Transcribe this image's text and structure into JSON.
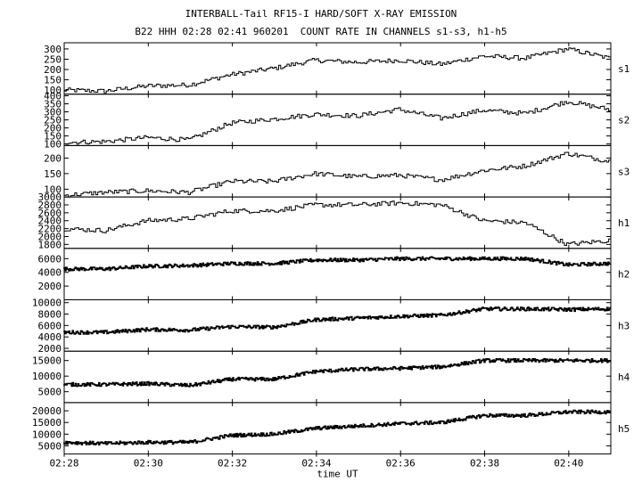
{
  "figure": {
    "title": "INTERBALL-Tail RF15-I HARD/SOFT X-RAY EMISSION",
    "subtitle": "B22 HHH 02:28 02:41 960201  COUNT RATE IN CHANNELS s1-s3, h1-h5",
    "xlabel": "time UT"
  },
  "chart_data": {
    "type": "line",
    "x_range": [
      "02:28",
      "02:41"
    ],
    "x_ticks": [
      "02:28",
      "02:30",
      "02:32",
      "02:34",
      "02:36",
      "02:38",
      "02:40"
    ],
    "grid": false,
    "panels": [
      {
        "name": "s1",
        "ylim": [
          80,
          330
        ],
        "y_ticks": [
          100,
          150,
          200,
          250,
          300
        ],
        "x": [
          "02:28",
          "02:29",
          "02:30",
          "02:31",
          "02:32",
          "02:33",
          "02:34",
          "02:35",
          "02:36",
          "02:37",
          "02:38",
          "02:39",
          "02:40",
          "02:41"
        ],
        "values": [
          100,
          95,
          120,
          125,
          175,
          205,
          245,
          235,
          245,
          225,
          265,
          255,
          300,
          255
        ]
      },
      {
        "name": "s2",
        "ylim": [
          90,
          410
        ],
        "y_ticks": [
          100,
          150,
          200,
          250,
          300,
          350,
          400
        ],
        "x": [
          "02:28",
          "02:29",
          "02:30",
          "02:31",
          "02:32",
          "02:33",
          "02:34",
          "02:35",
          "02:36",
          "02:37",
          "02:38",
          "02:39",
          "02:40",
          "02:41"
        ],
        "values": [
          110,
          115,
          140,
          125,
          230,
          255,
          285,
          275,
          315,
          260,
          310,
          290,
          365,
          315
        ]
      },
      {
        "name": "s3",
        "ylim": [
          75,
          240
        ],
        "y_ticks": [
          100,
          150,
          200
        ],
        "x": [
          "02:28",
          "02:29",
          "02:30",
          "02:31",
          "02:32",
          "02:33",
          "02:34",
          "02:35",
          "02:36",
          "02:37",
          "02:38",
          "02:39",
          "02:40",
          "02:41"
        ],
        "values": [
          80,
          90,
          95,
          90,
          125,
          125,
          150,
          140,
          145,
          130,
          160,
          175,
          215,
          190
        ]
      },
      {
        "name": "h1",
        "ylim": [
          1700,
          3000
        ],
        "y_ticks": [
          1800,
          2000,
          2200,
          2400,
          2600,
          2800,
          3000
        ],
        "x": [
          "02:28",
          "02:29",
          "02:30",
          "02:31",
          "02:32",
          "02:33",
          "02:34",
          "02:35",
          "02:36",
          "02:37",
          "02:38",
          "02:39",
          "02:40",
          "02:41"
        ],
        "values": [
          2200,
          2150,
          2400,
          2450,
          2650,
          2650,
          2800,
          2800,
          2850,
          2800,
          2400,
          2350,
          1800,
          1900
        ]
      },
      {
        "name": "h2",
        "ylim": [
          0,
          7500
        ],
        "y_ticks": [
          2000,
          4000,
          6000
        ],
        "x": [
          "02:28",
          "02:29",
          "02:30",
          "02:31",
          "02:32",
          "02:33",
          "02:34",
          "02:35",
          "02:36",
          "02:37",
          "02:38",
          "02:39",
          "02:40",
          "02:41"
        ],
        "values": [
          4500,
          4500,
          4900,
          5000,
          5300,
          5300,
          5800,
          5800,
          6000,
          6000,
          6000,
          6000,
          5100,
          5300
        ]
      },
      {
        "name": "h3",
        "ylim": [
          1500,
          10500
        ],
        "y_ticks": [
          2000,
          4000,
          6000,
          8000,
          10000
        ],
        "x": [
          "02:28",
          "02:29",
          "02:30",
          "02:31",
          "02:32",
          "02:33",
          "02:34",
          "02:35",
          "02:36",
          "02:37",
          "02:38",
          "02:39",
          "02:40",
          "02:41"
        ],
        "values": [
          4800,
          4800,
          5300,
          5200,
          5800,
          5700,
          7000,
          7300,
          7600,
          7800,
          8900,
          8900,
          8800,
          8900
        ]
      },
      {
        "name": "h4",
        "ylim": [
          1500,
          18000
        ],
        "y_ticks": [
          5000,
          10000,
          15000
        ],
        "x": [
          "02:28",
          "02:29",
          "02:30",
          "02:31",
          "02:32",
          "02:33",
          "02:34",
          "02:35",
          "02:36",
          "02:37",
          "02:38",
          "02:39",
          "02:40",
          "02:41"
        ],
        "values": [
          7300,
          7300,
          7600,
          7000,
          9000,
          9000,
          11500,
          12200,
          12500,
          13000,
          15000,
          15000,
          15000,
          15000
        ]
      },
      {
        "name": "h5",
        "ylim": [
          1500,
          23500
        ],
        "y_ticks": [
          5000,
          10000,
          15000,
          20000
        ],
        "x": [
          "02:28",
          "02:29",
          "02:30",
          "02:31",
          "02:32",
          "02:33",
          "02:34",
          "02:35",
          "02:36",
          "02:37",
          "02:38",
          "02:39",
          "02:40",
          "02:41"
        ],
        "values": [
          6500,
          6000,
          6500,
          6500,
          9500,
          10000,
          12500,
          13500,
          14500,
          15000,
          18000,
          18000,
          19500,
          19500
        ]
      }
    ]
  }
}
